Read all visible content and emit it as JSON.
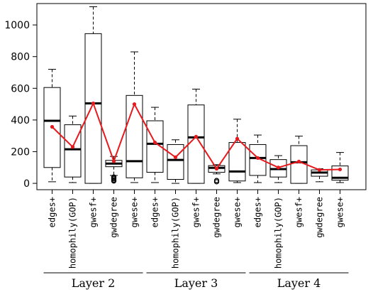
{
  "chart_data": {
    "type": "box",
    "ylim": [
      -40,
      1135
    ],
    "y_ticks": [
      0,
      200,
      400,
      600,
      800,
      1000
    ],
    "categories": [
      "edges+",
      "homophily(GOP)",
      "gwesf+",
      "gwdegree",
      "gwese+",
      "edges+",
      "homophily(GOP)",
      "gwesf+",
      "gwdegree",
      "gwese+",
      "edges+",
      "homophily(GOP)",
      "gwesf+",
      "gwdegree",
      "gwese+"
    ],
    "boxes": [
      {
        "whisker_low": 10,
        "q1": 100,
        "median": 395,
        "q3": 605,
        "whisker_high": 720
      },
      {
        "whisker_low": 5,
        "q1": 40,
        "median": 215,
        "q3": 370,
        "whisker_high": 425
      },
      {
        "whisker_low": 0,
        "q1": 0,
        "median": 505,
        "q3": 945,
        "whisker_high": 1115
      },
      {
        "whisker_low": 50,
        "q1": 105,
        "median": 125,
        "q3": 145,
        "whisker_high": 170,
        "outliers": [
          15,
          20,
          28,
          35,
          40
        ]
      },
      {
        "whisker_low": 5,
        "q1": 35,
        "median": 140,
        "q3": 555,
        "whisker_high": 830
      },
      {
        "whisker_low": 5,
        "q1": 70,
        "median": 250,
        "q3": 395,
        "whisker_high": 480
      },
      {
        "whisker_low": 0,
        "q1": 25,
        "median": 148,
        "q3": 245,
        "whisker_high": 275
      },
      {
        "whisker_low": 0,
        "q1": 0,
        "median": 290,
        "q3": 495,
        "whisker_high": 595
      },
      {
        "whisker_low": 60,
        "q1": 70,
        "median": 98,
        "q3": 112,
        "whisker_high": 118,
        "outliers": [
          10,
          18
        ]
      },
      {
        "whisker_low": 5,
        "q1": 15,
        "median": 75,
        "q3": 258,
        "whisker_high": 405
      },
      {
        "whisker_low": 5,
        "q1": 50,
        "median": 160,
        "q3": 245,
        "whisker_high": 305
      },
      {
        "whisker_low": 5,
        "q1": 40,
        "median": 90,
        "q3": 150,
        "whisker_high": 175
      },
      {
        "whisker_low": 0,
        "q1": 0,
        "median": 133,
        "q3": 238,
        "whisker_high": 298
      },
      {
        "whisker_low": 10,
        "q1": 45,
        "median": 68,
        "q3": 85,
        "whisker_high": 92
      },
      {
        "whisker_low": 5,
        "q1": 20,
        "median": 35,
        "q3": 110,
        "whisker_high": 195
      }
    ],
    "line_series": {
      "color": "#e8191c",
      "values": [
        357,
        230,
        505,
        140,
        500,
        258,
        165,
        295,
        92,
        282,
        160,
        100,
        138,
        85,
        88
      ]
    },
    "groups": [
      {
        "label": "Layer 2",
        "first": 0,
        "last": 4
      },
      {
        "label": "Layer 3",
        "first": 5,
        "last": 9
      },
      {
        "label": "Layer 4",
        "first": 10,
        "last": 14
      }
    ],
    "grid": false
  }
}
